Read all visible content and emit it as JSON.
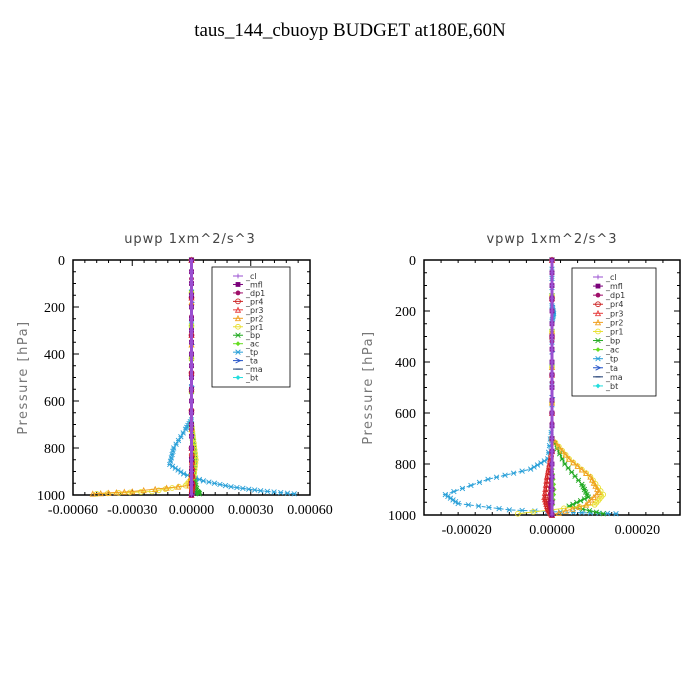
{
  "page_title": "taus_144_cbuoyp  BUDGET at180E,60N",
  "chart_data": [
    {
      "type": "line",
      "title": "upwp   1xm^2/s^3",
      "ylabel": "Pressure [hPa]",
      "xlabel": "",
      "xlim": [
        -0.0006,
        0.0006
      ],
      "ylim": [
        1000,
        0
      ],
      "x_ticks": [
        "-0.00060",
        "-0.00030",
        "0.00000",
        "0.00030",
        "0.00060"
      ],
      "x_tick_values": [
        -0.0006,
        -0.0003,
        0,
        0.0003,
        0.0006
      ],
      "y_ticks": [
        "0",
        "200",
        "400",
        "600",
        "800",
        "1000"
      ],
      "y_tick_values": [
        0,
        200,
        400,
        600,
        800,
        1000
      ],
      "legend_position": "top-right",
      "series": [
        {
          "name": "_cl",
          "color": "#9a4fd0",
          "marker": "plus",
          "x": [
            0,
            0,
            0,
            0,
            0
          ],
          "y": [
            0,
            250,
            500,
            750,
            1000
          ]
        },
        {
          "name": "_mfl",
          "color": "#7a007a",
          "marker": "square",
          "x": [
            0,
            0,
            0,
            0,
            0
          ],
          "y": [
            0,
            250,
            500,
            750,
            1000
          ]
        },
        {
          "name": "_dp1",
          "color": "#a0106a",
          "marker": "dot",
          "x": [
            0,
            0,
            0,
            0
          ],
          "y": [
            0,
            400,
            800,
            1000
          ]
        },
        {
          "name": "_pr4",
          "color": "#cc2222",
          "marker": "circle",
          "x": [
            0,
            0,
            5e-06,
            0
          ],
          "y": [
            0,
            800,
            950,
            1000
          ]
        },
        {
          "name": "_pr3",
          "color": "#e84040",
          "marker": "triangle",
          "x": [
            0,
            0,
            8e-06,
            0
          ],
          "y": [
            0,
            800,
            950,
            1000
          ]
        },
        {
          "name": "_pr2",
          "color": "#f0a020",
          "marker": "triangle",
          "x": [
            0,
            0,
            -1e-05,
            -0.0003,
            -0.0005
          ],
          "y": [
            0,
            900,
            960,
            985,
            995
          ]
        },
        {
          "name": "_pr1",
          "color": "#e8e030",
          "marker": "circle",
          "x": [
            0,
            0,
            1.2e-05,
            2.2e-05,
            1.2e-05,
            -3e-05,
            -0.0002,
            -0.00048
          ],
          "y": [
            0,
            700,
            780,
            850,
            920,
            960,
            985,
            995
          ]
        },
        {
          "name": "_bp",
          "color": "#22aa22",
          "marker": "star",
          "x": [
            0,
            0,
            1e-05,
            1.8e-05,
            1e-05,
            3e-05,
            4e-05
          ],
          "y": [
            0,
            700,
            780,
            850,
            920,
            985,
            995
          ]
        },
        {
          "name": "_ac",
          "color": "#66dd22",
          "marker": "diamond",
          "x": [
            0,
            0,
            8e-06,
            1e-05,
            4e-06,
            0
          ],
          "y": [
            0,
            750,
            830,
            880,
            950,
            1000
          ]
        },
        {
          "name": "_tp",
          "color": "#2aa0d8",
          "marker": "star",
          "x": [
            0,
            0,
            -3e-05,
            -9e-05,
            -0.00011,
            -4e-05,
            6e-05,
            0.0002,
            0.00035,
            0.00052
          ],
          "y": [
            0,
            680,
            720,
            800,
            870,
            910,
            940,
            965,
            982,
            995
          ]
        },
        {
          "name": "_ta",
          "color": "#2050c8",
          "marker": "arrow",
          "x": [
            0,
            0,
            5e-06,
            1e-05
          ],
          "y": [
            0,
            900,
            975,
            995
          ]
        },
        {
          "name": "_ma",
          "color": "#1a3a70",
          "marker": "dash",
          "x": [
            0,
            0,
            0
          ],
          "y": [
            0,
            500,
            1000
          ]
        },
        {
          "name": "_bt",
          "color": "#22dddd",
          "marker": "diamond",
          "x": [
            0,
            0,
            0
          ],
          "y": [
            0,
            500,
            1000
          ]
        }
      ]
    },
    {
      "type": "line",
      "title": "vpwp   1xm^2/s^3",
      "ylabel": "Pressure [hPa]",
      "xlabel": "",
      "xlim": [
        -0.0003,
        0.0003
      ],
      "ylim": [
        1000,
        0
      ],
      "x_ticks": [
        "-0.00020",
        "0.00000",
        "0.00020"
      ],
      "x_tick_values": [
        -0.0002,
        0,
        0.0002
      ],
      "y_ticks": [
        "0",
        "200",
        "400",
        "600",
        "800",
        "1000"
      ],
      "y_tick_values": [
        0,
        200,
        400,
        600,
        800,
        1000
      ],
      "legend_position": "top-right",
      "series": [
        {
          "name": "_cl",
          "color": "#9a4fd0",
          "marker": "plus",
          "x": [
            0,
            0,
            0,
            0,
            0
          ],
          "y": [
            0,
            250,
            500,
            750,
            1000
          ]
        },
        {
          "name": "_mfl",
          "color": "#7a007a",
          "marker": "square",
          "x": [
            0,
            0,
            0,
            0,
            0
          ],
          "y": [
            0,
            250,
            500,
            750,
            1000
          ]
        },
        {
          "name": "_dp1",
          "color": "#a0106a",
          "marker": "dot",
          "x": [
            0,
            0,
            -5e-06,
            0
          ],
          "y": [
            0,
            800,
            950,
            1000
          ]
        },
        {
          "name": "_pr4",
          "color": "#cc2222",
          "marker": "circle",
          "x": [
            0,
            0,
            -1e-05,
            -1.5e-05,
            -1e-05,
            0
          ],
          "y": [
            0,
            750,
            850,
            930,
            975,
            1000
          ]
        },
        {
          "name": "_pr3",
          "color": "#e84040",
          "marker": "triangle",
          "x": [
            0,
            0,
            -1.2e-05,
            -1.8e-05,
            -1e-05,
            0
          ],
          "y": [
            0,
            750,
            850,
            930,
            975,
            1000
          ]
        },
        {
          "name": "_pr2",
          "color": "#f0a020",
          "marker": "triangle",
          "x": [
            0,
            0,
            4e-05,
            9e-05,
            0.00011,
            8e-05,
            0
          ],
          "y": [
            0,
            700,
            780,
            850,
            910,
            960,
            1000
          ]
        },
        {
          "name": "_pr1",
          "color": "#e8e030",
          "marker": "circle",
          "x": [
            0,
            0,
            4e-05,
            9e-05,
            0.00012,
            0.0001,
            -8e-05
          ],
          "y": [
            0,
            700,
            780,
            850,
            920,
            960,
            995
          ]
        },
        {
          "name": "_bp",
          "color": "#22aa22",
          "marker": "star",
          "x": [
            0,
            0,
            3e-05,
            7e-05,
            8.5e-05,
            4e-05,
            0.00012
          ],
          "y": [
            0,
            700,
            800,
            880,
            930,
            965,
            995
          ]
        },
        {
          "name": "_ac",
          "color": "#66dd22",
          "marker": "diamond",
          "x": [
            0,
            0,
            5e-06,
            0
          ],
          "y": [
            0,
            800,
            900,
            1000
          ]
        },
        {
          "name": "_tp",
          "color": "#2aa0d8",
          "marker": "star",
          "x": [
            0,
            0,
            4e-06,
            0,
            0,
            -1e-05,
            -5e-05,
            -0.00015,
            -0.00025,
            -0.00022,
            -0.0001,
            5e-05,
            0.00015
          ],
          "y": [
            0,
            180,
            210,
            240,
            650,
            780,
            820,
            860,
            920,
            955,
            980,
            990,
            995
          ]
        },
        {
          "name": "_ta",
          "color": "#2050c8",
          "marker": "arrow",
          "x": [
            0,
            0,
            -5e-06,
            0
          ],
          "y": [
            0,
            900,
            970,
            1000
          ]
        },
        {
          "name": "_ma",
          "color": "#1a3a70",
          "marker": "dash",
          "x": [
            0,
            0,
            0
          ],
          "y": [
            0,
            500,
            1000
          ]
        },
        {
          "name": "_bt",
          "color": "#22dddd",
          "marker": "diamond",
          "x": [
            0,
            0,
            0
          ],
          "y": [
            0,
            500,
            1000
          ]
        }
      ]
    }
  ]
}
